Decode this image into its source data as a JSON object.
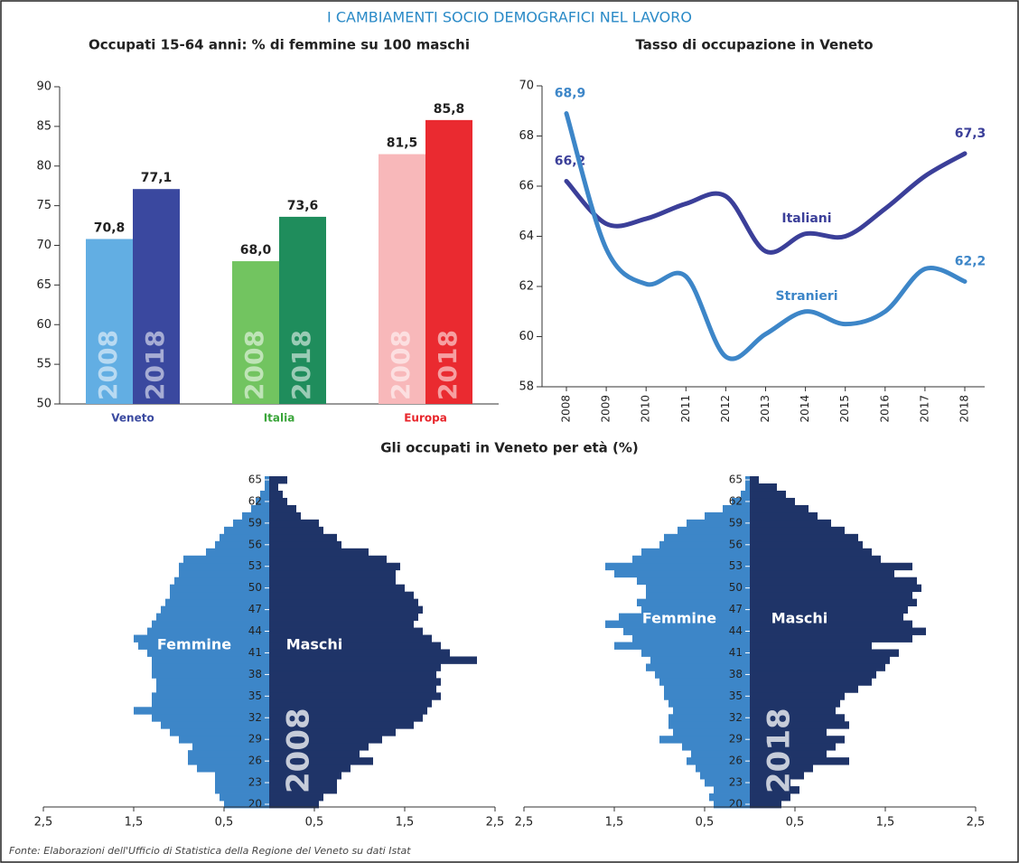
{
  "title": "I CAMBIAMENTI SOCIO DEMOGRAFICI NEL LAVORO",
  "section_title": "Gli occupati in Veneto per età (%)",
  "source": "Fonte: Elaborazioni dell'Ufficio di Statistica della Regione del Veneto su dati  Istat",
  "chart_data": [
    {
      "type": "bar",
      "title": "Occupati 15-64 anni: % di femmine su 100 maschi",
      "categories": [
        "Veneto",
        "Italia",
        "Europa"
      ],
      "category_colors": [
        "#3b4aa0",
        "#3aa53a",
        "#e8262c"
      ],
      "series": [
        {
          "name": "2008",
          "colors": [
            "#62aee3",
            "#72c460",
            "#f8b8ba"
          ],
          "values": [
            70.8,
            68.0,
            81.5
          ],
          "value_labels": [
            "70,8",
            "68,0",
            "81,5"
          ]
        },
        {
          "name": "2018",
          "colors": [
            "#3a489f",
            "#1f8d5c",
            "#ea2a30"
          ],
          "values": [
            77.1,
            73.6,
            85.8
          ],
          "value_labels": [
            "77,1",
            "73,6",
            "85,8"
          ]
        }
      ],
      "ylim": [
        50,
        90
      ],
      "yticks": [
        50,
        55,
        60,
        65,
        70,
        75,
        80,
        85,
        90
      ]
    },
    {
      "type": "line",
      "title": "Tasso di occupazione in Veneto",
      "x": [
        2008,
        2009,
        2010,
        2011,
        2012,
        2013,
        2014,
        2015,
        2016,
        2017,
        2018
      ],
      "series": [
        {
          "name": "Italiani",
          "color": "#3b3f99",
          "values": [
            66.2,
            64.5,
            64.7,
            65.3,
            65.6,
            63.4,
            64.1,
            64.0,
            65.1,
            66.4,
            67.3
          ],
          "value_labels": [
            "66,2",
            null,
            null,
            null,
            null,
            null,
            null,
            null,
            null,
            null,
            "67,3"
          ]
        },
        {
          "name": "Stranieri",
          "color": "#3d86c8",
          "values": [
            68.9,
            63.5,
            62.1,
            62.4,
            59.2,
            60.1,
            61.0,
            60.5,
            61.0,
            62.7,
            62.2
          ],
          "value_labels": [
            "68,9",
            null,
            null,
            null,
            null,
            null,
            null,
            null,
            null,
            null,
            "62,2"
          ]
        }
      ],
      "xlim": [
        2008,
        2018
      ],
      "ylim": [
        58,
        70
      ],
      "yticks": [
        58,
        60,
        62,
        64,
        66,
        68,
        70
      ]
    },
    {
      "type": "pyramid",
      "label": "2008",
      "categories": [
        20,
        null,
        null,
        23,
        null,
        null,
        26,
        null,
        null,
        29,
        null,
        null,
        32,
        null,
        null,
        35,
        null,
        null,
        38,
        null,
        null,
        41,
        null,
        null,
        44,
        null,
        null,
        47,
        null,
        null,
        50,
        null,
        null,
        53,
        null,
        null,
        56,
        null,
        null,
        59,
        null,
        null,
        62,
        null,
        null,
        65
      ],
      "series": [
        {
          "name": "Femmine",
          "color": "#3d86c8",
          "values": [
            0.5,
            0.55,
            0.6,
            0.6,
            0.6,
            0.8,
            0.9,
            0.9,
            0.85,
            1.0,
            1.1,
            1.2,
            1.3,
            1.5,
            1.3,
            1.3,
            1.25,
            1.25,
            1.3,
            1.3,
            1.3,
            1.35,
            1.45,
            1.5,
            1.35,
            1.3,
            1.25,
            1.2,
            1.15,
            1.1,
            1.1,
            1.05,
            1.0,
            1.0,
            0.95,
            0.7,
            0.6,
            0.55,
            0.5,
            0.4,
            0.3,
            0.2,
            0.15,
            0.1,
            0.05,
            0.05
          ]
        },
        {
          "name": "Maschi",
          "color": "#1f3468",
          "values": [
            0.55,
            0.6,
            0.75,
            0.75,
            0.8,
            0.9,
            1.15,
            1.0,
            1.1,
            1.25,
            1.4,
            1.6,
            1.7,
            1.75,
            1.8,
            1.9,
            1.85,
            1.9,
            1.85,
            1.9,
            2.3,
            2.0,
            1.9,
            1.8,
            1.7,
            1.6,
            1.65,
            1.7,
            1.65,
            1.6,
            1.5,
            1.4,
            1.4,
            1.45,
            1.3,
            1.1,
            0.8,
            0.75,
            0.6,
            0.55,
            0.35,
            0.3,
            0.2,
            0.15,
            0.1,
            0.2
          ]
        }
      ],
      "xlim": [
        -2.5,
        2.5
      ],
      "xticks": [
        {
          "value": -2.5,
          "label": "2,5"
        },
        {
          "value": -1.5,
          "label": "1,5"
        },
        {
          "value": -0.5,
          "label": "0,5"
        },
        {
          "value": 0.5,
          "label": "0,5"
        },
        {
          "value": 1.5,
          "label": "1,5"
        },
        {
          "value": 2.5,
          "label": "2,5"
        }
      ]
    },
    {
      "type": "pyramid",
      "label": "2018",
      "categories": [
        20,
        null,
        null,
        23,
        null,
        null,
        26,
        null,
        null,
        29,
        null,
        null,
        32,
        null,
        null,
        35,
        null,
        null,
        38,
        null,
        null,
        41,
        null,
        null,
        44,
        null,
        null,
        47,
        null,
        null,
        50,
        null,
        null,
        53,
        null,
        null,
        56,
        null,
        null,
        59,
        null,
        null,
        62,
        null,
        null,
        65
      ],
      "series": [
        {
          "name": "Femmine",
          "color": "#3d86c8",
          "values": [
            0.4,
            0.45,
            0.4,
            0.5,
            0.55,
            0.6,
            0.7,
            0.65,
            0.75,
            1.0,
            0.85,
            0.9,
            0.9,
            0.85,
            0.9,
            0.95,
            0.95,
            1.0,
            1.05,
            1.15,
            1.1,
            1.2,
            1.5,
            1.3,
            1.4,
            1.6,
            1.45,
            1.2,
            1.25,
            1.15,
            1.15,
            1.25,
            1.5,
            1.6,
            1.3,
            1.2,
            1.0,
            0.95,
            0.8,
            0.7,
            0.5,
            0.3,
            0.2,
            0.1,
            0.05,
            0.05
          ]
        },
        {
          "name": "Maschi",
          "color": "#1f3468",
          "values": [
            0.35,
            0.45,
            0.55,
            0.45,
            0.6,
            0.7,
            1.1,
            0.85,
            0.95,
            1.05,
            0.85,
            1.1,
            1.05,
            0.95,
            1.0,
            1.05,
            1.2,
            1.35,
            1.4,
            1.5,
            1.55,
            1.65,
            1.35,
            1.8,
            1.95,
            1.8,
            1.7,
            1.75,
            1.85,
            1.8,
            1.9,
            1.85,
            1.6,
            1.8,
            1.45,
            1.35,
            1.25,
            1.2,
            1.05,
            0.9,
            0.75,
            0.65,
            0.5,
            0.4,
            0.3,
            0.1
          ]
        }
      ],
      "xlim": [
        -2.5,
        2.5
      ],
      "xticks": [
        {
          "value": -2.5,
          "label": "2,5"
        },
        {
          "value": -1.5,
          "label": "1,5"
        },
        {
          "value": -0.5,
          "label": "0,5"
        },
        {
          "value": 0.5,
          "label": "0,5"
        },
        {
          "value": 1.5,
          "label": "1,5"
        },
        {
          "value": 2.5,
          "label": "2,5"
        }
      ]
    }
  ]
}
